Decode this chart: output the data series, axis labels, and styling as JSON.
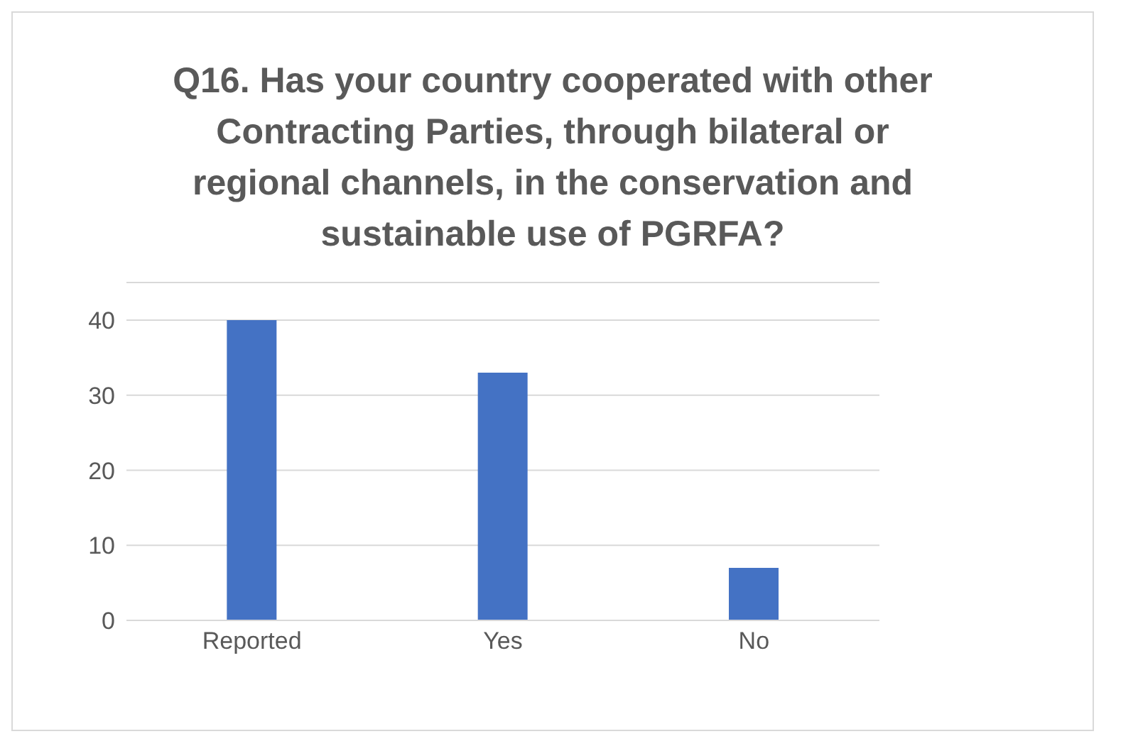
{
  "chart_data": {
    "type": "bar",
    "title": "Q16. Has your country cooperated with other Contracting Parties, through bilateral or regional channels, in the conservation and sustainable use of PGRFA?",
    "categories": [
      "Reported",
      "Yes",
      "No"
    ],
    "values": [
      40,
      33,
      7
    ],
    "color": "#4472c4",
    "ylim": [
      0,
      45
    ],
    "yticks": [
      0,
      10,
      20,
      30,
      40
    ],
    "grid": "y"
  }
}
